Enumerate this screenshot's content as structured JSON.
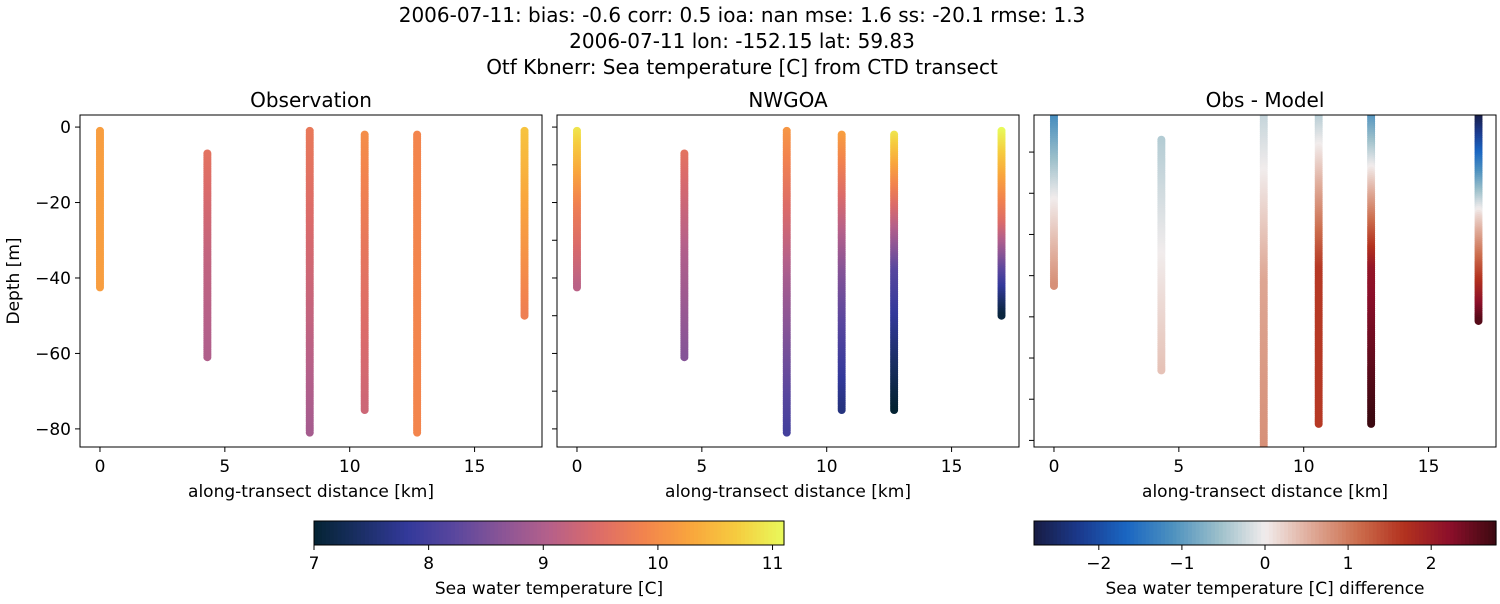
{
  "title_lines": [
    "2006-07-11: bias: -0.6  corr: 0.5  ioa: nan  mse: 1.6  ss: -20.1  rmse: 1.3",
    "2006-07-11 lon: -152.15 lat: 59.83",
    "Otf Kbnerr: Sea temperature [C] from CTD transect"
  ],
  "chart_data": [
    {
      "type": "scatter",
      "title": "Observation",
      "xlabel": "along-transect distance [km]",
      "ylabel": "Depth [m]",
      "xlim": [
        -0.8,
        17.7
      ],
      "ylim": [
        -84.8,
        3.2
      ],
      "xticks": [
        0,
        5,
        10,
        15
      ],
      "yticks": [
        0,
        -20,
        -40,
        -60,
        -80
      ],
      "ytick_labels_shown": true,
      "colormap": "thermal",
      "profiles": [
        {
          "x": 0.0,
          "depth_top": -1,
          "depth_bottom": -42.5,
          "values": [
            10.2,
            10.2,
            10.2
          ]
        },
        {
          "x": 4.3,
          "depth_top": -7,
          "depth_bottom": -61,
          "values": [
            9.6,
            9.2,
            9.0
          ]
        },
        {
          "x": 8.4,
          "depth_top": -1,
          "depth_bottom": -81,
          "values": [
            9.7,
            9.3,
            8.9
          ]
        },
        {
          "x": 10.6,
          "depth_top": -2,
          "depth_bottom": -75,
          "values": [
            10.0,
            9.6,
            9.3
          ]
        },
        {
          "x": 12.7,
          "depth_top": -2,
          "depth_bottom": -81,
          "values": [
            9.9,
            9.9,
            9.9
          ]
        },
        {
          "x": 17.0,
          "depth_top": -1,
          "depth_bottom": -50,
          "values": [
            10.6,
            10.2,
            9.8
          ]
        }
      ]
    },
    {
      "type": "scatter",
      "title": "NWGOA",
      "xlabel": "along-transect distance [km]",
      "xlim": [
        -0.8,
        17.7
      ],
      "ylim": [
        -84.8,
        3.2
      ],
      "xticks": [
        0,
        5,
        10,
        15
      ],
      "yticks": [
        0,
        -10,
        -20,
        -30,
        -40,
        -50,
        -60,
        -70,
        -80
      ],
      "ytick_labels_shown": false,
      "colormap": "thermal",
      "profiles": [
        {
          "x": 0.0,
          "depth_top": -1,
          "depth_bottom": -42.5,
          "values": [
            10.9,
            9.8,
            9.1
          ]
        },
        {
          "x": 4.3,
          "depth_top": -7,
          "depth_bottom": -61,
          "values": [
            9.6,
            9.0,
            8.6
          ]
        },
        {
          "x": 8.4,
          "depth_top": -1,
          "depth_bottom": -81,
          "values": [
            10.1,
            8.9,
            8.0
          ]
        },
        {
          "x": 10.6,
          "depth_top": -2,
          "depth_bottom": -75,
          "values": [
            10.2,
            8.6,
            7.6
          ]
        },
        {
          "x": 12.7,
          "depth_top": -2,
          "depth_bottom": -75,
          "values": [
            10.9,
            8.2,
            7.0
          ]
        },
        {
          "x": 17.0,
          "depth_top": -1,
          "depth_bottom": -50,
          "values": [
            11.1,
            9.5,
            7.1
          ]
        }
      ]
    },
    {
      "type": "scatter",
      "title": "Obs - Model",
      "xlabel": "along-transect distance [km]",
      "xlim": [
        -0.8,
        17.7
      ],
      "ylim": [
        -80.6,
        0
      ],
      "xticks": [
        0,
        5,
        10,
        15
      ],
      "yticks": [
        -9,
        -19,
        -29,
        -39,
        -49,
        -59,
        -69,
        -79
      ],
      "ytick_labels_shown": false,
      "colormap": "balance",
      "profiles": [
        {
          "x": 0.0,
          "depth_top": 0,
          "depth_bottom": -41.5,
          "values": [
            -1.2,
            0.0,
            0.8
          ]
        },
        {
          "x": 4.3,
          "depth_top": -6,
          "depth_bottom": -62,
          "values": [
            -0.4,
            0.0,
            0.35
          ]
        },
        {
          "x": 8.4,
          "depth_top": 0,
          "depth_bottom": -82,
          "values": [
            -0.3,
            0.6,
            0.8
          ]
        },
        {
          "x": 10.6,
          "depth_top": 0,
          "depth_bottom": -75,
          "values": [
            -0.4,
            1.6,
            1.6
          ]
        },
        {
          "x": 12.7,
          "depth_top": 0,
          "depth_bottom": -75,
          "values": [
            -1.1,
            2.1,
            2.8
          ]
        },
        {
          "x": 17.0,
          "depth_top": 0,
          "depth_bottom": -50,
          "values": [
            -2.8,
            0.2,
            2.6
          ]
        }
      ]
    }
  ],
  "colorbars": [
    {
      "label": "Sea water temperature [C]",
      "range": [
        7,
        11.1
      ],
      "ticks": [
        "7",
        "8",
        "9",
        "10",
        "11"
      ],
      "tick_values": [
        7,
        8,
        9,
        10,
        11
      ],
      "colormap": "thermal"
    },
    {
      "label": "Sea water temperature [C] difference",
      "range": [
        -2.78,
        2.78
      ],
      "ticks": [
        "−2",
        "−1",
        "0",
        "1",
        "2"
      ],
      "tick_values": [
        -2,
        -1,
        0,
        1,
        2
      ],
      "colormap": "balance"
    }
  ],
  "colormaps": {
    "thermal": [
      "#042333",
      "#1b2f66",
      "#33399b",
      "#5a479e",
      "#8a5596",
      "#b5608a",
      "#db6b6a",
      "#f2834e",
      "#f9a53d",
      "#f6cc3f",
      "#e8fa5b"
    ],
    "balance": [
      "#181c43",
      "#1b3a8e",
      "#1a66c2",
      "#4d91bf",
      "#9bbfca",
      "#f1ecec",
      "#dfaa98",
      "#cc6e4e",
      "#b3321f",
      "#8c0f2a",
      "#3c0911"
    ]
  }
}
